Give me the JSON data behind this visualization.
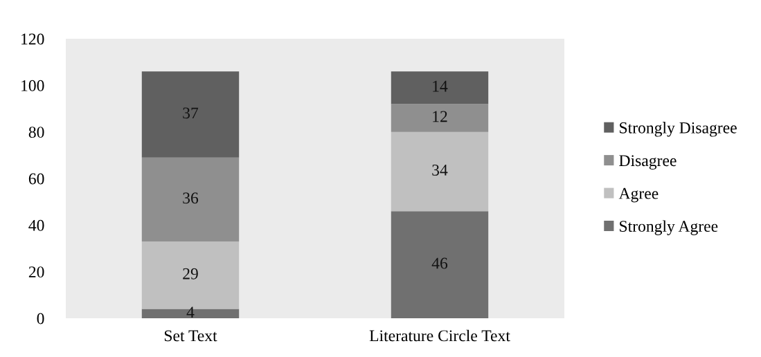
{
  "chart_data": {
    "type": "bar",
    "stacked": true,
    "categories": [
      "Set Text",
      "Literature Circle Text"
    ],
    "series": [
      {
        "name": "Strongly Agree",
        "color": "#707070",
        "values": [
          4,
          46
        ]
      },
      {
        "name": "Agree",
        "color": "#c0c0c0",
        "values": [
          29,
          34
        ]
      },
      {
        "name": "Disagree",
        "color": "#8f8f8f",
        "values": [
          36,
          12
        ]
      },
      {
        "name": "Strongly Disagree",
        "color": "#606060",
        "values": [
          37,
          14
        ]
      }
    ],
    "ylim": [
      0,
      120
    ],
    "yticks": [
      0,
      20,
      40,
      60,
      80,
      100,
      120
    ],
    "data_labels": true,
    "legend": "right",
    "grid": false
  }
}
